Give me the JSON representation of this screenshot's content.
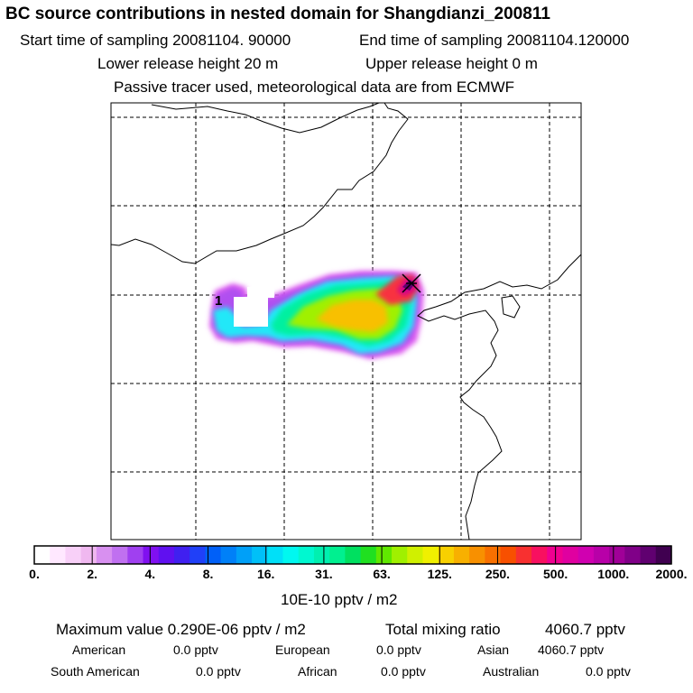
{
  "header": {
    "title": "BC  source contributions in nested domain for Shangdianzi_200811",
    "start_label": "Start time of sampling 20081104. 90000",
    "end_label": "End time of sampling 20081104.120000",
    "lower_label": "Lower release height   20 m",
    "upper_label": "Upper release height    0 m",
    "tracer_label": "Passive tracer used, meteorological data are from ECMWF"
  },
  "legend": {
    "ticks": [
      "0.",
      "2.",
      "4.",
      "8.",
      "16.",
      "31.",
      "63.",
      "125.",
      "250.",
      "500.",
      "1000.",
      "2000."
    ],
    "unit": "10E-10 pptv / m2",
    "colors": [
      "#ffffff",
      "#ffe8ff",
      "#f8d0f8",
      "#f0b8f0",
      "#d890f0",
      "#c070f0",
      "#a040f0",
      "#8010f0",
      "#6010f0",
      "#4020f0",
      "#2040f8",
      "#0060f8",
      "#0080f8",
      "#00a0f8",
      "#00c0f8",
      "#00e0f8",
      "#00f8f0",
      "#00f8d0",
      "#00f0b0",
      "#00f090",
      "#00e060",
      "#20e020",
      "#60e800",
      "#a0f000",
      "#d0f000",
      "#f0f000",
      "#f8d000",
      "#f8b000",
      "#f89000",
      "#f87000",
      "#f85000",
      "#f83030",
      "#f81060",
      "#f00090",
      "#e000a0",
      "#d000b0",
      "#b800a8",
      "#a00098",
      "#800088",
      "#600070",
      "#400050"
    ]
  },
  "footer": {
    "max_label": "Maximum value  0.290E-06 pptv / m2",
    "total_label": "Total mixing ratio",
    "total_value": "4060.7 pptv",
    "regions": [
      {
        "name": "American",
        "value": "0.0 pptv"
      },
      {
        "name": "European",
        "value": "0.0 pptv"
      },
      {
        "name": "Asian",
        "value": "4060.7 pptv"
      },
      {
        "name": "South American",
        "value": "0.0 pptv"
      },
      {
        "name": "African",
        "value": "0.0 pptv"
      },
      {
        "name": "Australian",
        "value": "0.0 pptv"
      }
    ]
  },
  "map": {
    "marker_label": "1"
  }
}
